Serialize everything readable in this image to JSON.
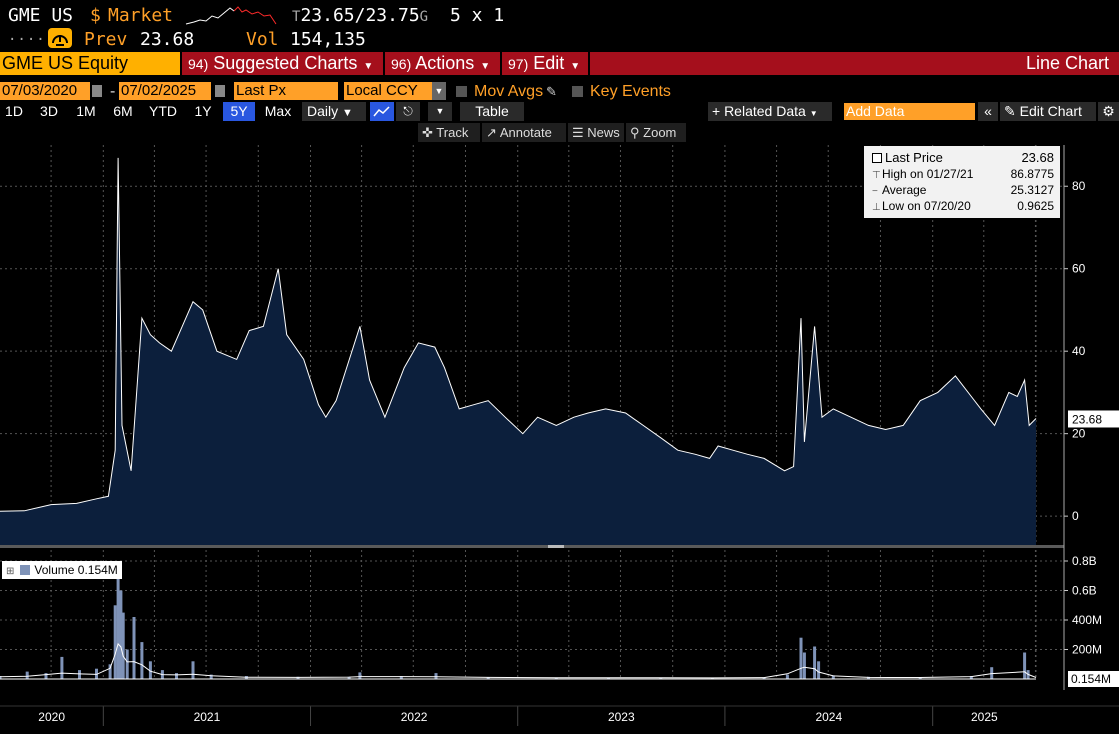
{
  "header": {
    "ticker": "GME US",
    "currency_symbol": "$",
    "market_label": "Market",
    "bid_prefix": "T",
    "bid": "23.65",
    "separator": "/",
    "ask": "23.75",
    "ask_suffix": "G",
    "size": "5 x 1",
    "dots": "....",
    "badge_icon": "gauge-icon",
    "prev_label": "Prev",
    "prev_value": "23.68",
    "vol_label": "Vol",
    "vol_value": "154,135"
  },
  "menubar": {
    "security": "GME US Equity",
    "suggested_num": "94)",
    "suggested_label": "Suggested Charts",
    "actions_num": "96)",
    "actions_label": "Actions",
    "edit_num": "97)",
    "edit_label": "Edit",
    "chart_type_label": "Line Chart"
  },
  "controls": {
    "start_date": "07/03/2020",
    "date_sep": "-",
    "end_date": "07/02/2025",
    "field": "Last Px",
    "currency": "Local CCY",
    "mov_avgs": "Mov Avgs",
    "key_events": "Key Events",
    "periods": [
      "1D",
      "3D",
      "1M",
      "6M",
      "YTD",
      "1Y",
      "5Y",
      "Max"
    ],
    "active_period": "5Y",
    "frequency": "Daily",
    "table_label": "Table",
    "related_data": "+ Related Data",
    "add_data_placeholder": "Add Data",
    "edit_chart": "Edit Chart"
  },
  "tools": [
    "Track",
    "Annotate",
    "News",
    "Zoom"
  ],
  "legend": {
    "last_price_label": "Last Price",
    "last_price_value": "23.68",
    "high_label": "High on 01/27/21",
    "high_value": "86.8775",
    "average_label": "Average",
    "average_value": "25.3127",
    "low_label": "Low on 07/20/20",
    "low_value": "0.9625"
  },
  "volume_legend": {
    "label": "Volume",
    "value": "0.154M"
  },
  "colors": {
    "orange": "#ffa028",
    "menubar": "#a50f1c",
    "area_fill": "#0c1f3c",
    "line": "#ffffff",
    "volume_fill": "#7f93b8",
    "active_period": "#2957e0"
  },
  "chart_data": [
    {
      "type": "area",
      "series": [
        {
          "name": "Last Price",
          "x": [
            "2020-07-03",
            "2020-08-15",
            "2020-10-01",
            "2020-11-15",
            "2020-12-20",
            "2021-01-10",
            "2021-01-22",
            "2021-01-27",
            "2021-02-03",
            "2021-02-19",
            "2021-03-10",
            "2021-03-25",
            "2021-04-10",
            "2021-05-01",
            "2021-05-20",
            "2021-06-08",
            "2021-06-25",
            "2021-07-20",
            "2021-08-24",
            "2021-09-15",
            "2021-10-10",
            "2021-11-05",
            "2021-11-20",
            "2021-12-20",
            "2022-01-15",
            "2022-01-28",
            "2022-02-15",
            "2022-03-29",
            "2022-04-15",
            "2022-05-12",
            "2022-06-15",
            "2022-07-10",
            "2022-08-08",
            "2022-08-25",
            "2022-09-20",
            "2022-10-15",
            "2022-11-10",
            "2022-12-10",
            "2023-01-10",
            "2023-02-05",
            "2023-03-10",
            "2023-04-10",
            "2023-05-05",
            "2023-06-05",
            "2023-07-10",
            "2023-08-10",
            "2023-09-10",
            "2023-10-10",
            "2023-11-10",
            "2023-12-05",
            "2023-12-20",
            "2024-01-15",
            "2024-02-10",
            "2024-03-10",
            "2024-04-15",
            "2024-05-01",
            "2024-05-14",
            "2024-05-20",
            "2024-06-07",
            "2024-06-20",
            "2024-07-10",
            "2024-08-10",
            "2024-09-10",
            "2024-10-10",
            "2024-11-10",
            "2024-12-10",
            "2025-01-10",
            "2025-02-10",
            "2025-03-10",
            "2025-03-27",
            "2025-04-20",
            "2025-05-15",
            "2025-05-30",
            "2025-06-12",
            "2025-06-20",
            "2025-07-02"
          ],
          "y": [
            1.2,
            1.3,
            2.8,
            3.1,
            4.2,
            4.8,
            16,
            86.88,
            22,
            11,
            48,
            44,
            42,
            40,
            46,
            52,
            50,
            40,
            38,
            45,
            46,
            60,
            44,
            38,
            27,
            24,
            28,
            46,
            33,
            24,
            36,
            42,
            41,
            36,
            26,
            27,
            28,
            24,
            20,
            24,
            22,
            24,
            25,
            26,
            25,
            22,
            19,
            16,
            15,
            14,
            17,
            16,
            15,
            14,
            11,
            12,
            48,
            18,
            46,
            24,
            26,
            24,
            22,
            21,
            22,
            28,
            30,
            34,
            29,
            26,
            22,
            30,
            29,
            33,
            22,
            23.68
          ],
          "unit": "USD"
        }
      ],
      "x_ticks": [
        "2020",
        "2021",
        "2022",
        "2023",
        "2024",
        "2025"
      ],
      "y_ticks": [
        0,
        20,
        40,
        60,
        80
      ],
      "ylim": [
        -7,
        90
      ],
      "last_value_label": "23.68",
      "grid": true,
      "legend_position": "top-right"
    },
    {
      "type": "bar",
      "series": [
        {
          "name": "Volume",
          "x": [
            "2020-07-03",
            "2020-08-20",
            "2020-09-22",
            "2020-10-20",
            "2020-11-20",
            "2020-12-20",
            "2021-01-13",
            "2021-01-22",
            "2021-01-27",
            "2021-02-01",
            "2021-02-05",
            "2021-02-12",
            "2021-02-24",
            "2021-03-10",
            "2021-03-25",
            "2021-04-15",
            "2021-05-10",
            "2021-06-08",
            "2021-07-10",
            "2021-09-10",
            "2021-12-10",
            "2022-03-10",
            "2022-03-29",
            "2022-06-10",
            "2022-08-10",
            "2022-11-10",
            "2023-03-10",
            "2023-06-10",
            "2023-09-10",
            "2023-12-10",
            "2024-03-10",
            "2024-04-20",
            "2024-05-14",
            "2024-05-20",
            "2024-06-07",
            "2024-06-14",
            "2024-07-10",
            "2024-09-10",
            "2024-12-10",
            "2025-03-10",
            "2025-04-15",
            "2025-06-12",
            "2025-06-18",
            "2025-07-02"
          ],
          "y": [
            20000000,
            50000000,
            40000000,
            150000000,
            60000000,
            70000000,
            100000000,
            500000000,
            780000000,
            600000000,
            450000000,
            200000000,
            420000000,
            250000000,
            120000000,
            60000000,
            40000000,
            120000000,
            30000000,
            20000000,
            15000000,
            15000000,
            45000000,
            20000000,
            40000000,
            10000000,
            8000000,
            10000000,
            8000000,
            7000000,
            8000000,
            30000000,
            280000000,
            180000000,
            220000000,
            120000000,
            25000000,
            15000000,
            12000000,
            20000000,
            80000000,
            180000000,
            60000000,
            154000
          ]
        }
      ],
      "y_ticks": [
        "0.8B",
        "0.6B",
        "400M",
        "200M"
      ],
      "last_value_label": "0.154M"
    }
  ]
}
